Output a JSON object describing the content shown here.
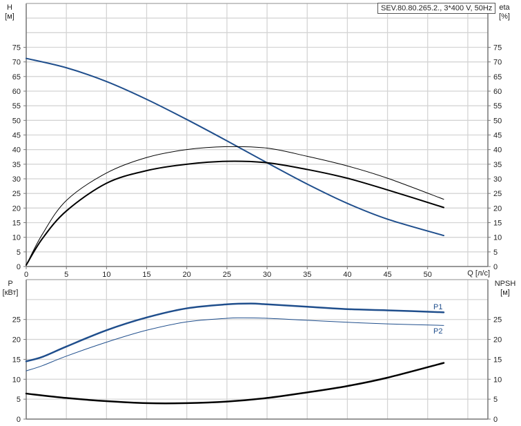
{
  "chart_data": [
    {
      "type": "line",
      "title": "SEV.80.80.265.2., 3*400 V, 50Hz",
      "xlabel": "Q [л/с]",
      "ylabel_left": "H",
      "ylabel_left_unit": "[м]",
      "ylabel_right": "eta",
      "ylabel_right_unit": "[%]",
      "xlim": [
        0,
        57.5
      ],
      "ylim": [
        0,
        90
      ],
      "x_ticks": [
        0,
        5,
        10,
        15,
        20,
        25,
        30,
        35,
        40,
        45,
        50
      ],
      "y_ticks": [
        0,
        5,
        10,
        15,
        20,
        25,
        30,
        35,
        40,
        45,
        50,
        55,
        60,
        65,
        70,
        75
      ],
      "grid": true,
      "series": [
        {
          "id": "H",
          "axis": "left",
          "color": "#1f4e8c",
          "width": 2,
          "x": [
            0,
            5,
            10,
            15,
            20,
            25,
            30,
            35,
            40,
            45,
            52
          ],
          "y": [
            71.2,
            68,
            63.3,
            57.2,
            50.3,
            43,
            35.5,
            28.2,
            21.6,
            16.2,
            10.6
          ]
        },
        {
          "id": "eta_thin",
          "axis": "right",
          "color": "#000000",
          "width": 1,
          "x": [
            0,
            2,
            5,
            10,
            15,
            20,
            25,
            30,
            35,
            40,
            45,
            52
          ],
          "y": [
            0.5,
            11,
            22.6,
            32,
            37.3,
            40,
            41,
            40.5,
            37.7,
            34.4,
            30.2,
            23
          ]
        },
        {
          "id": "eta_thick",
          "axis": "right",
          "color": "#000000",
          "width": 2,
          "x": [
            0,
            2,
            5,
            10,
            15,
            20,
            25,
            30,
            35,
            40,
            45,
            52
          ],
          "y": [
            0.5,
            9.5,
            19,
            28.5,
            32.8,
            35,
            36,
            35.5,
            33.2,
            30.2,
            26.2,
            20.2
          ]
        }
      ]
    },
    {
      "type": "line",
      "xlabel": "Q [л/с]",
      "ylabel_left": "P",
      "ylabel_left_unit": "[кВт]",
      "ylabel_right": "NPSH",
      "ylabel_right_unit": "[м]",
      "xlim": [
        0,
        57.5
      ],
      "ylim": [
        0,
        35
      ],
      "y_ticks": [
        0,
        5,
        10,
        15,
        20,
        25
      ],
      "grid": true,
      "series": [
        {
          "name": "P1",
          "axis": "left",
          "color": "#1f4e8c",
          "width": 2.5,
          "x": [
            0,
            2,
            5,
            10,
            15,
            20,
            25,
            28,
            30,
            35,
            40,
            45,
            52
          ],
          "y": [
            14.5,
            15.6,
            18.2,
            22.3,
            25.5,
            27.8,
            28.8,
            29,
            28.8,
            28.2,
            27.6,
            27.3,
            26.8
          ]
        },
        {
          "name": "P2",
          "axis": "left",
          "color": "#1f4e8c",
          "width": 1,
          "x": [
            0,
            2,
            5,
            10,
            15,
            20,
            25,
            27,
            30,
            35,
            40,
            45,
            52
          ],
          "y": [
            12.1,
            13.4,
            15.8,
            19.3,
            22.3,
            24.4,
            25.3,
            25.4,
            25.3,
            24.8,
            24.3,
            23.9,
            23.5
          ]
        },
        {
          "id": "NPSH",
          "axis": "right",
          "color": "#000000",
          "width": 2.5,
          "x": [
            0,
            5,
            10,
            15,
            20,
            25,
            30,
            35,
            40,
            45,
            52
          ],
          "y": [
            6.4,
            5.3,
            4.5,
            4.0,
            4.0,
            4.4,
            5.3,
            6.7,
            8.3,
            10.4,
            14.1
          ]
        }
      ]
    }
  ]
}
